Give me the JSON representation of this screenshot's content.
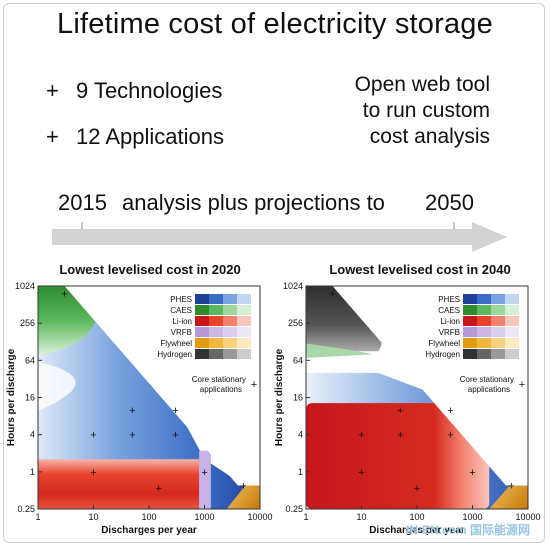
{
  "header": {
    "title": "Lifetime cost of electricity storage",
    "bullet_1": "9 Technologies",
    "bullet_2": "12 Applications",
    "bullet_symbol": "+",
    "tool_lines": [
      "Open web tool",
      "to run custom",
      "cost analysis"
    ]
  },
  "timeline": {
    "start_year": "2015",
    "text": "analysis plus projections to",
    "end_year": "2050",
    "arrow_color": "#d3d3d3"
  },
  "watermark": "IN-EN.com 国际能源网",
  "chart_data": [
    {
      "type": "heatmap",
      "title": "Lowest levelised cost in 2020",
      "xlabel": "Discharges per year",
      "ylabel": "Hours per discharge",
      "x_scale": "log",
      "y_scale": "log",
      "xlim": [
        1,
        10000
      ],
      "ylim": [
        0.25,
        1024
      ],
      "x_ticks": [
        "1",
        "10",
        "100",
        "1000",
        "10000"
      ],
      "x_tick_values": [
        1,
        10,
        100,
        1000,
        10000
      ],
      "y_ticks": [
        "0.25",
        "1",
        "4",
        "16",
        "64",
        "256",
        "1024"
      ],
      "y_tick_values": [
        0.25,
        1,
        4,
        16,
        64,
        256,
        1024
      ],
      "legend": {
        "placement": "top-right",
        "entries": [
          {
            "name": "PHES",
            "colors": [
              "#1f3f99",
              "#3a6cc5",
              "#7aa3df",
              "#c2d6f2"
            ]
          },
          {
            "name": "CAES",
            "colors": [
              "#2e8b2e",
              "#5cb85c",
              "#9fd89f",
              "#d6f0d6"
            ]
          },
          {
            "name": "Li-ion",
            "colors": [
              "#c8161d",
              "#e8432e",
              "#f2826f",
              "#f9c6bd"
            ]
          },
          {
            "name": "VRFB",
            "colors": [
              "#b59ad6",
              "#cbb6e4",
              "#dccff0",
              "#eee7f8"
            ]
          },
          {
            "name": "Flywheel",
            "colors": [
              "#e59a0b",
              "#f1b73f",
              "#f6d27f",
              "#fbeabf"
            ]
          },
          {
            "name": "Hydrogen",
            "colors": [
              "#333333",
              "#666666",
              "#999999",
              "#cccccc"
            ]
          }
        ]
      },
      "core_label": [
        "Core stationary",
        "applications"
      ],
      "core_marker": "+",
      "applications": [
        {
          "x": 3,
          "y": 768
        },
        {
          "x": 10,
          "y": 4
        },
        {
          "x": 50,
          "y": 4
        },
        {
          "x": 50,
          "y": 10
        },
        {
          "x": 300,
          "y": 10
        },
        {
          "x": 300,
          "y": 4
        },
        {
          "x": 10,
          "y": 1
        },
        {
          "x": 150,
          "y": 0.55
        },
        {
          "x": 1000,
          "y": 1
        },
        {
          "x": 5000,
          "y": 0.6
        }
      ],
      "regions": [
        {
          "technology": "CAES",
          "shade": 1,
          "note": "green upper left"
        },
        {
          "technology": "PHES",
          "shade": 1,
          "note": "blue middle"
        },
        {
          "technology": "Li-ion",
          "shade": 0,
          "note": "red bottom"
        },
        {
          "technology": "VRFB",
          "shade": 0,
          "note": "purple strip"
        },
        {
          "technology": "Flywheel",
          "shade": 0,
          "note": "orange corner"
        }
      ]
    },
    {
      "type": "heatmap",
      "title": "Lowest levelised cost in 2040",
      "xlabel": "Discharges per year",
      "ylabel": "Hours per discharge",
      "x_scale": "log",
      "y_scale": "log",
      "xlim": [
        1,
        10000
      ],
      "ylim": [
        0.25,
        1024
      ],
      "x_ticks": [
        "1",
        "10",
        "100",
        "1000",
        "10000"
      ],
      "x_tick_values": [
        1,
        10,
        100,
        1000,
        10000
      ],
      "y_ticks": [
        "0.25",
        "1",
        "4",
        "16",
        "64",
        "256",
        "1024"
      ],
      "y_tick_values": [
        0.25,
        1,
        4,
        16,
        64,
        256,
        1024
      ],
      "legend": {
        "placement": "top-right",
        "entries": [
          {
            "name": "PHES",
            "colors": [
              "#1f3f99",
              "#3a6cc5",
              "#7aa3df",
              "#c2d6f2"
            ]
          },
          {
            "name": "CAES",
            "colors": [
              "#2e8b2e",
              "#5cb85c",
              "#9fd89f",
              "#d6f0d6"
            ]
          },
          {
            "name": "Li-ion",
            "colors": [
              "#c8161d",
              "#e8432e",
              "#f2826f",
              "#f9c6bd"
            ]
          },
          {
            "name": "VRFB",
            "colors": [
              "#b59ad6",
              "#cbb6e4",
              "#dccff0",
              "#eee7f8"
            ]
          },
          {
            "name": "Flywheel",
            "colors": [
              "#e59a0b",
              "#f1b73f",
              "#f6d27f",
              "#fbeabf"
            ]
          },
          {
            "name": "Hydrogen",
            "colors": [
              "#333333",
              "#666666",
              "#999999",
              "#cccccc"
            ]
          }
        ]
      },
      "core_label": [
        "Core stationary",
        "applications"
      ],
      "core_marker": "+",
      "applications": [
        {
          "x": 3,
          "y": 768
        },
        {
          "x": 10,
          "y": 4
        },
        {
          "x": 50,
          "y": 4
        },
        {
          "x": 50,
          "y": 10
        },
        {
          "x": 400,
          "y": 10
        },
        {
          "x": 400,
          "y": 4
        },
        {
          "x": 10,
          "y": 1
        },
        {
          "x": 100,
          "y": 0.55
        },
        {
          "x": 1000,
          "y": 1
        },
        {
          "x": 5000,
          "y": 0.6
        }
      ],
      "regions": [
        {
          "technology": "Hydrogen",
          "shade": 1,
          "note": "gray upper left"
        },
        {
          "technology": "PHES",
          "shade": 1,
          "note": "blue middle band"
        },
        {
          "technology": "Li-ion",
          "shade": 0,
          "note": "red bottom"
        },
        {
          "technology": "Flywheel",
          "shade": 0,
          "note": "orange corner"
        }
      ]
    }
  ]
}
